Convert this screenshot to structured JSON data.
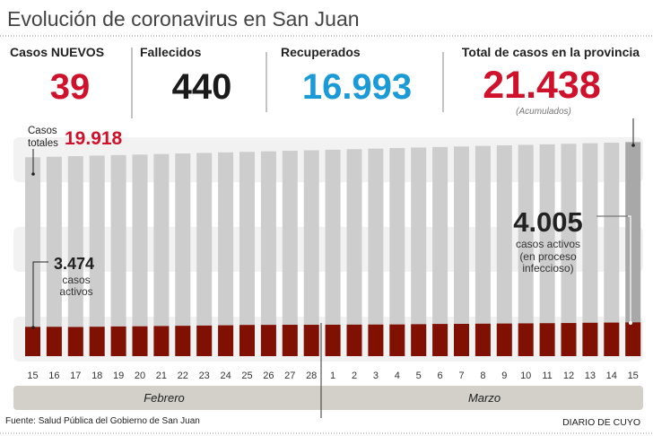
{
  "header": {
    "title": "Evolución de coronavirus en San Juan"
  },
  "stats": [
    {
      "label": "Casos NUEVOS",
      "value": "39",
      "color": "#d0112b"
    },
    {
      "label": "Fallecidos",
      "value": "440",
      "color": "#1a1a1a"
    },
    {
      "label": "Recuperados",
      "value": "16.993",
      "color": "#1a9ad6"
    },
    {
      "label": "Total de casos en la provincia",
      "value": "21.438",
      "color": "#d0112b",
      "note": "(Acumulados)"
    }
  ],
  "annotations": {
    "start_total_label_1": "Casos",
    "start_total_label_2": "totales",
    "start_total_value": "19.918",
    "start_active_value": "3.474",
    "start_active_label_1": "casos",
    "start_active_label_2": "activos",
    "end_active_value": "4.005",
    "end_active_label_1": "casos activos",
    "end_active_label_2": "(en proceso",
    "end_active_label_3": "infeccioso)"
  },
  "chart_data": {
    "type": "bar",
    "title": "Evolución de coronavirus en San Juan",
    "xlabel": "",
    "ylabel": "",
    "categories": [
      "15",
      "16",
      "17",
      "18",
      "19",
      "20",
      "21",
      "22",
      "23",
      "24",
      "25",
      "26",
      "27",
      "28",
      "1",
      "2",
      "3",
      "4",
      "5",
      "6",
      "7",
      "8",
      "9",
      "10",
      "11",
      "12",
      "13",
      "14",
      "15"
    ],
    "months": [
      "Febrero",
      "Marzo"
    ],
    "series": [
      {
        "name": "Casos totales",
        "color": "#cdcdcd",
        "highlight_color": "#a8a8a8",
        "values": [
          19918,
          19975,
          20030,
          20085,
          20140,
          20190,
          20245,
          20300,
          20355,
          20410,
          20460,
          20515,
          20570,
          20620,
          20675,
          20730,
          20785,
          20840,
          20895,
          20950,
          21000,
          21055,
          21110,
          21160,
          21215,
          21270,
          21325,
          21380,
          21438
        ]
      },
      {
        "name": "casos activos",
        "color": "#7f1002",
        "values": [
          3474,
          3480,
          3460,
          3490,
          3520,
          3540,
          3570,
          3600,
          3630,
          3660,
          3700,
          3710,
          3720,
          3720,
          3730,
          3740,
          3750,
          3760,
          3790,
          3820,
          3830,
          3850,
          3870,
          3890,
          3910,
          3930,
          3960,
          3980,
          4005
        ]
      }
    ],
    "ylim": [
      0,
      22000
    ],
    "grid": false,
    "legend": "none"
  },
  "footer": {
    "source": "Fuente: Salud Pública del Gobierno de San Juan",
    "brand": "DIARIO DE CUYO"
  }
}
